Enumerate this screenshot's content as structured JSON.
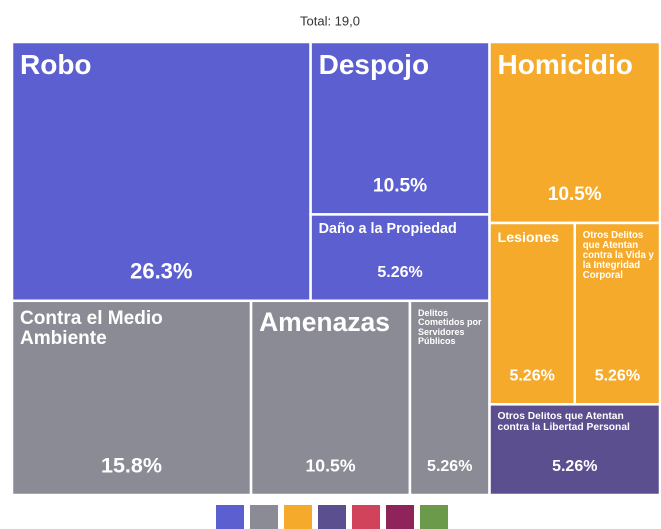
{
  "chart_data": {
    "type": "treemap",
    "title": "Total: 19,0",
    "groups": [
      {
        "color": "#5b5fcf",
        "children": [
          {
            "name": "Robo",
            "value": 26.3,
            "value_label": "26.3%"
          },
          {
            "name": "Despojo",
            "value": 10.5,
            "value_label": "10.5%"
          },
          {
            "name": "Daño a la Propiedad",
            "value": 5.26,
            "value_label": "5.26%"
          }
        ]
      },
      {
        "color": "#8b8b95",
        "children": [
          {
            "name": "Contra el Medio Ambiente",
            "value": 15.8,
            "value_label": "15.8%"
          },
          {
            "name": "Amenazas",
            "value": 10.5,
            "value_label": "10.5%"
          },
          {
            "name": "Delitos Cometidos por Servidores Públicos",
            "value": 5.26,
            "value_label": "5.26%"
          }
        ]
      },
      {
        "color": "#f5aa2b",
        "children": [
          {
            "name": "Homicidio",
            "value": 10.5,
            "value_label": "10.5%"
          },
          {
            "name": "Lesiones",
            "value": 5.26,
            "value_label": "5.26%"
          },
          {
            "name": "Otros Delitos que Atentan contra la Vida y la Integridad Corporal",
            "value": 5.26,
            "value_label": "5.26%"
          }
        ]
      },
      {
        "color": "#5b4f8f",
        "children": [
          {
            "name": "Otros Delitos que Atentan contra la Libertad Personal",
            "value": 5.26,
            "value_label": "5.26%"
          }
        ]
      }
    ],
    "legend_colors": [
      "#5b5fcf",
      "#8b8b95",
      "#f5aa2b",
      "#5b4f8f",
      "#d1435b",
      "#8e2459",
      "#6a9a4a"
    ]
  }
}
